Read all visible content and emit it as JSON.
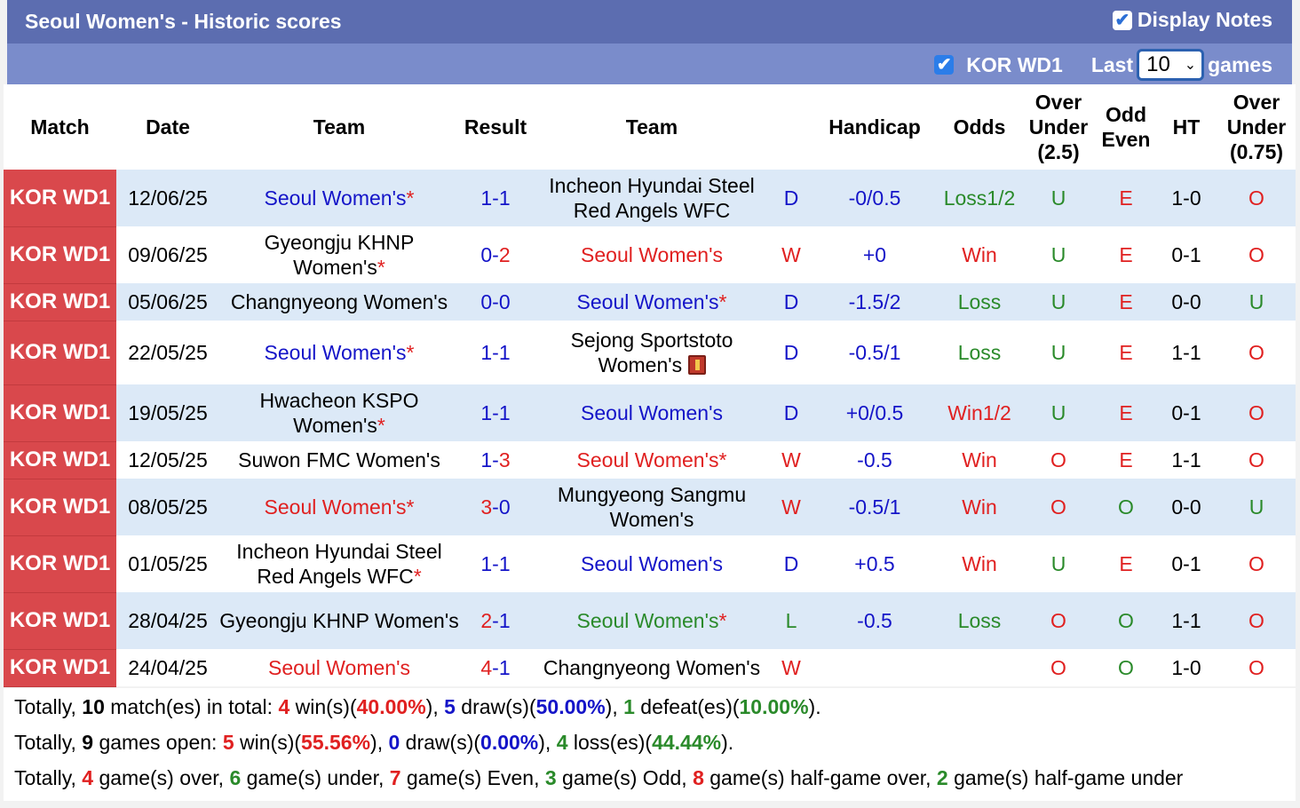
{
  "header": {
    "title": "Seoul Women's - Historic scores",
    "display_notes_label": "Display Notes",
    "display_notes_checked": true
  },
  "filter": {
    "league_label": "KOR WD1",
    "league_checked": true,
    "last_label": "Last",
    "games_select_value": "10",
    "games_label": "games"
  },
  "columns": [
    "Match",
    "Date",
    "Team",
    "Result",
    "Team",
    "Handicap",
    "Odds",
    "Over Under (2.5)",
    "Odd Even",
    "HT",
    "Over Under (0.75)"
  ],
  "column_lines": {
    "ou25": [
      "Over",
      "Under",
      "(2.5)"
    ],
    "oddeven": [
      "Odd",
      "Even"
    ],
    "ou075": [
      "Over",
      "Under",
      "(0.75)"
    ]
  },
  "colors": {
    "league_bg": "#d9484c",
    "win_red": "#e02020",
    "draw_blue": "#1414c8",
    "loss_green": "#2a8a2a",
    "header_bg": "#5c6db0",
    "subheader_bg": "#7a8ccb"
  },
  "rows": [
    {
      "league": "KOR WD1",
      "date": "12/06/25",
      "home": "Seoul Women's",
      "home_star": "*",
      "home_color": "blue",
      "res1": "1",
      "res2": "1",
      "res_color1": "blue",
      "res_color2": "blue",
      "away": "Incheon Hyundai Steel Red Angels WFC",
      "away_star": "",
      "away_color": "black",
      "away_icon": false,
      "wdl": "D",
      "wdl_color": "blue",
      "handicap": "-0/0.5",
      "odds": "Loss1/2",
      "odds_color": "green",
      "ou": "U",
      "ou_color": "green",
      "oe": "E",
      "oe_color": "red",
      "ht": "1-0",
      "ou2": "O",
      "ou2_color": "red"
    },
    {
      "league": "KOR WD1",
      "date": "09/06/25",
      "home": "Gyeongju KHNP Women's",
      "home_star": "*",
      "home_color": "black",
      "res1": "0",
      "res2": "2",
      "res_color1": "blue",
      "res_color2": "red",
      "away": "Seoul Women's",
      "away_star": "",
      "away_color": "red",
      "away_icon": false,
      "wdl": "W",
      "wdl_color": "red",
      "handicap": "+0",
      "odds": "Win",
      "odds_color": "red",
      "ou": "U",
      "ou_color": "green",
      "oe": "E",
      "oe_color": "red",
      "ht": "0-1",
      "ou2": "O",
      "ou2_color": "red"
    },
    {
      "league": "KOR WD1",
      "date": "05/06/25",
      "home": "Changnyeong Women's",
      "home_star": "",
      "home_color": "black",
      "res1": "0",
      "res2": "0",
      "res_color1": "blue",
      "res_color2": "blue",
      "away": "Seoul Women's",
      "away_star": "*",
      "away_color": "blue",
      "away_icon": false,
      "wdl": "D",
      "wdl_color": "blue",
      "handicap": "-1.5/2",
      "odds": "Loss",
      "odds_color": "green",
      "ou": "U",
      "ou_color": "green",
      "oe": "E",
      "oe_color": "red",
      "ht": "0-0",
      "ou2": "U",
      "ou2_color": "green"
    },
    {
      "league": "KOR WD1",
      "date": "22/05/25",
      "home": "Seoul Women's",
      "home_star": "*",
      "home_color": "blue",
      "res1": "1",
      "res2": "1",
      "res_color1": "blue",
      "res_color2": "blue",
      "away": "Sejong Sportstoto Women's",
      "away_star": "",
      "away_color": "black",
      "away_icon": true,
      "wdl": "D",
      "wdl_color": "blue",
      "handicap": "-0.5/1",
      "odds": "Loss",
      "odds_color": "green",
      "ou": "U",
      "ou_color": "green",
      "oe": "E",
      "oe_color": "red",
      "ht": "1-1",
      "ou2": "O",
      "ou2_color": "red"
    },
    {
      "league": "KOR WD1",
      "date": "19/05/25",
      "home": "Hwacheon KSPO Women's",
      "home_star": "*",
      "home_color": "black",
      "res1": "1",
      "res2": "1",
      "res_color1": "blue",
      "res_color2": "blue",
      "away": "Seoul Women's",
      "away_star": "",
      "away_color": "blue",
      "away_icon": false,
      "wdl": "D",
      "wdl_color": "blue",
      "handicap": "+0/0.5",
      "odds": "Win1/2",
      "odds_color": "red",
      "ou": "U",
      "ou_color": "green",
      "oe": "E",
      "oe_color": "red",
      "ht": "0-1",
      "ou2": "O",
      "ou2_color": "red"
    },
    {
      "league": "KOR WD1",
      "date": "12/05/25",
      "home": "Suwon FMC Women's",
      "home_star": "",
      "home_color": "black",
      "res1": "1",
      "res2": "3",
      "res_color1": "blue",
      "res_color2": "red",
      "away": "Seoul Women's",
      "away_star": "*",
      "away_color": "red",
      "away_icon": false,
      "wdl": "W",
      "wdl_color": "red",
      "handicap": "-0.5",
      "odds": "Win",
      "odds_color": "red",
      "ou": "O",
      "ou_color": "red",
      "oe": "E",
      "oe_color": "red",
      "ht": "1-1",
      "ou2": "O",
      "ou2_color": "red"
    },
    {
      "league": "KOR WD1",
      "date": "08/05/25",
      "home": "Seoul Women's",
      "home_star": "*",
      "home_color": "red",
      "res1": "3",
      "res2": "0",
      "res_color1": "red",
      "res_color2": "blue",
      "away": "Mungyeong Sangmu Women's",
      "away_star": "",
      "away_color": "black",
      "away_icon": false,
      "wdl": "W",
      "wdl_color": "red",
      "handicap": "-0.5/1",
      "odds": "Win",
      "odds_color": "red",
      "ou": "O",
      "ou_color": "red",
      "oe": "O",
      "oe_color": "green",
      "ht": "0-0",
      "ou2": "U",
      "ou2_color": "green"
    },
    {
      "league": "KOR WD1",
      "date": "01/05/25",
      "home": "Incheon Hyundai Steel Red Angels WFC",
      "home_star": "*",
      "home_color": "black",
      "res1": "1",
      "res2": "1",
      "res_color1": "blue",
      "res_color2": "blue",
      "away": "Seoul Women's",
      "away_star": "",
      "away_color": "blue",
      "away_icon": false,
      "wdl": "D",
      "wdl_color": "blue",
      "handicap": "+0.5",
      "odds": "Win",
      "odds_color": "red",
      "ou": "U",
      "ou_color": "green",
      "oe": "E",
      "oe_color": "red",
      "ht": "0-1",
      "ou2": "O",
      "ou2_color": "red"
    },
    {
      "league": "KOR WD1",
      "date": "28/04/25",
      "home": "Gyeongju KHNP Women's",
      "home_star": "",
      "home_color": "black",
      "res1": "2",
      "res2": "1",
      "res_color1": "red",
      "res_color2": "blue",
      "away": "Seoul Women's",
      "away_star": "*",
      "away_color": "green",
      "away_icon": false,
      "wdl": "L",
      "wdl_color": "green",
      "handicap": "-0.5",
      "odds": "Loss",
      "odds_color": "green",
      "ou": "O",
      "ou_color": "red",
      "oe": "O",
      "oe_color": "green",
      "ht": "1-1",
      "ou2": "O",
      "ou2_color": "red"
    },
    {
      "league": "KOR WD1",
      "date": "24/04/25",
      "home": "Seoul Women's",
      "home_star": "",
      "home_color": "red",
      "res1": "4",
      "res2": "1",
      "res_color1": "red",
      "res_color2": "blue",
      "away": "Changnyeong Women's",
      "away_star": "",
      "away_color": "black",
      "away_icon": false,
      "wdl": "W",
      "wdl_color": "red",
      "handicap": "",
      "odds": "",
      "odds_color": "red",
      "ou": "O",
      "ou_color": "red",
      "oe": "O",
      "oe_color": "green",
      "ht": "1-0",
      "ou2": "O",
      "ou2_color": "red"
    }
  ],
  "summary": {
    "line1": {
      "p1": "Totally, ",
      "total": "10",
      "p2": " match(es) in total: ",
      "wins": "4",
      "p3": " win(s)(",
      "win_pct": "40.00%",
      "p4": "), ",
      "draws": "5",
      "p5": " draw(s)(",
      "draw_pct": "50.00%",
      "p6": "), ",
      "defeats": "1",
      "p7": " defeat(es)(",
      "defeat_pct": "10.00%",
      "p8": ")."
    },
    "line2": {
      "p1": "Totally, ",
      "total": "9",
      "p2": " games open: ",
      "wins": "5",
      "p3": " win(s)(",
      "win_pct": "55.56%",
      "p4": "), ",
      "draws": "0",
      "p5": " draw(s)(",
      "draw_pct": "0.00%",
      "p6": "), ",
      "losses": "4",
      "p7": " loss(es)(",
      "loss_pct": "44.44%",
      "p8": ")."
    },
    "line3": {
      "p1": "Totally, ",
      "over": "4",
      "p2": " game(s) over, ",
      "under": "6",
      "p3": " game(s) under, ",
      "even": "7",
      "p4": " game(s) Even, ",
      "odd": "3",
      "p5": " game(s) Odd, ",
      "hg_over": "8",
      "p6": " game(s) half-game over, ",
      "hg_under": "2",
      "p7": " game(s) half-game under"
    }
  }
}
